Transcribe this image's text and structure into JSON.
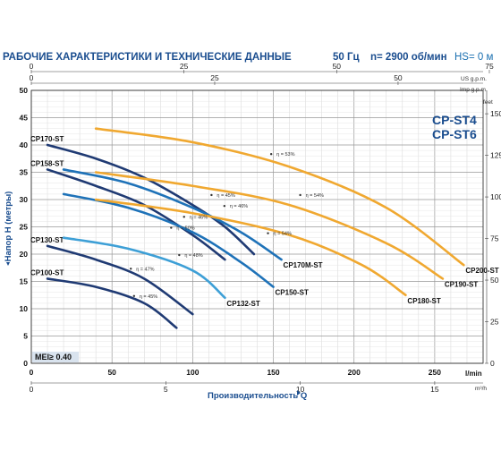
{
  "header": {
    "title": "РАБОЧИЕ ХАРАКТЕРИСТИКИ И ТЕХНИЧЕСКИЕ ДАННЫЕ",
    "frequency": "50 Гц",
    "speed": "n= 2900 об/мин",
    "hs": "HS= 0 м"
  },
  "models": [
    "CP-ST4",
    "CP-ST6"
  ],
  "mei": "MEI≥ 0.40",
  "colors": {
    "dark_blue": "#1f3a73",
    "mid_blue": "#1e72b8",
    "light_blue": "#3d9fd6",
    "orange": "#f0a830",
    "grid": "#cccccc",
    "title": "#1a4d8f"
  },
  "chart_data": {
    "type": "line",
    "xlabel": "Производительность Q",
    "ylabel": "Напор H (метры)",
    "x_unit": "l/min",
    "y_unit_right": "feet",
    "xlim": [
      0,
      280
    ],
    "ylim": [
      0,
      50
    ],
    "grid": true,
    "x_ticks": [
      0,
      50,
      100,
      150,
      200,
      250
    ],
    "y_ticks": [
      0,
      5,
      10,
      15,
      20,
      25,
      30,
      35,
      40,
      45,
      50
    ],
    "secondary_axes": {
      "us_gpm": {
        "unit": "US g.p.m.",
        "ticks": [
          0,
          25,
          50,
          75
        ]
      },
      "imp_gpm": {
        "unit": "Imp g.p.m.",
        "ticks": [
          0,
          25,
          50
        ]
      },
      "m3h": {
        "unit": "m³/h",
        "ticks": [
          0,
          5,
          10,
          15
        ]
      },
      "feet": {
        "unit": "feet",
        "ticks": [
          0,
          25,
          50,
          75,
          100,
          125,
          150
        ]
      }
    },
    "series": [
      {
        "name": "CP170-ST",
        "color": "#1f3a73",
        "x": [
          10,
          40,
          70,
          100,
          120,
          138
        ],
        "y": [
          40,
          37.5,
          34,
          29,
          25,
          20
        ]
      },
      {
        "name": "CP158-ST",
        "color": "#1f3a73",
        "x": [
          10,
          40,
          70,
          100,
          120
        ],
        "y": [
          35.5,
          32.5,
          29,
          23.5,
          19
        ]
      },
      {
        "name": "CP170M-ST",
        "color": "#1e72b8",
        "x": [
          20,
          60,
          100,
          130,
          155
        ],
        "y": [
          35.5,
          33,
          28.5,
          24,
          19
        ]
      },
      {
        "name": "CP150-ST",
        "color": "#1e72b8",
        "x": [
          20,
          60,
          100,
          130,
          150
        ],
        "y": [
          31,
          28.5,
          24,
          18.5,
          14
        ]
      },
      {
        "name": "CP130-ST",
        "color": "#1f3a73",
        "x": [
          10,
          40,
          70,
          100
        ],
        "y": [
          21.5,
          19,
          15.5,
          9
        ]
      },
      {
        "name": "CP132-ST",
        "color": "#3d9fd6",
        "x": [
          20,
          60,
          100,
          120
        ],
        "y": [
          23,
          21,
          17,
          12
        ]
      },
      {
        "name": "CP100-ST",
        "color": "#1f3a73",
        "x": [
          10,
          40,
          70,
          90
        ],
        "y": [
          15.5,
          14,
          11,
          6.5
        ]
      },
      {
        "name": "CP200-ST",
        "color": "#f0a830",
        "x": [
          40,
          100,
          160,
          220,
          268
        ],
        "y": [
          43,
          40.5,
          36,
          28.5,
          18
        ]
      },
      {
        "name": "CP190-ST",
        "color": "#f0a830",
        "x": [
          40,
          100,
          160,
          220,
          255
        ],
        "y": [
          35,
          32.5,
          29,
          22,
          15.5
        ]
      },
      {
        "name": "CP180-ST",
        "color": "#f0a830",
        "x": [
          40,
          100,
          160,
          205,
          232
        ],
        "y": [
          30,
          27.5,
          23.5,
          18,
          12.5
        ]
      }
    ],
    "annotations": [
      {
        "text": "η = 53%",
        "x": 152,
        "y": 38
      },
      {
        "text": "η = 54%",
        "x": 170,
        "y": 30.5
      },
      {
        "text": "η = 54%",
        "x": 150,
        "y": 23.5
      },
      {
        "text": "η = 45%",
        "x": 115,
        "y": 30.5
      },
      {
        "text": "η = 46%",
        "x": 123,
        "y": 28.5
      },
      {
        "text": "η = 46%",
        "x": 98,
        "y": 26.5
      },
      {
        "text": "η = 50%",
        "x": 90,
        "y": 24.5
      },
      {
        "text": "η = 48%",
        "x": 95,
        "y": 19.5
      },
      {
        "text": "η = 47%",
        "x": 65,
        "y": 17
      },
      {
        "text": "η = 45%",
        "x": 67,
        "y": 12
      }
    ]
  }
}
